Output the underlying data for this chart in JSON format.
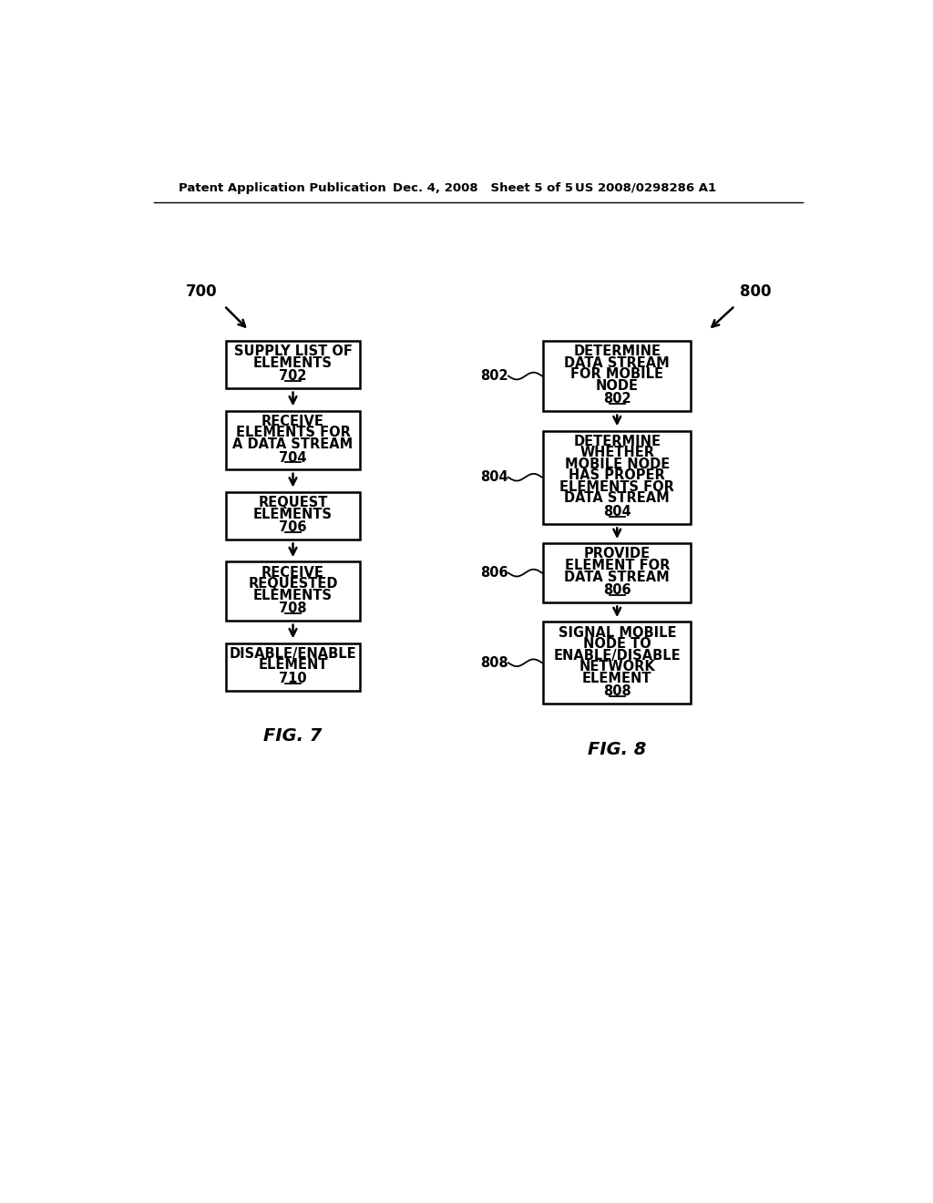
{
  "header_left": "Patent Application Publication",
  "header_mid": "Dec. 4, 2008   Sheet 5 of 5",
  "header_right": "US 2008/0298286 A1",
  "fig7_label": "FIG. 7",
  "fig8_label": "FIG. 8",
  "fig7_ref": "700",
  "fig8_ref": "800",
  "fig7_boxes": [
    {
      "lines": [
        "SUPPLY LIST OF",
        "ELEMENTS"
      ],
      "num": "702"
    },
    {
      "lines": [
        "RECEIVE",
        "ELEMENTS FOR",
        "A DATA STREAM"
      ],
      "num": "704"
    },
    {
      "lines": [
        "REQUEST",
        "ELEMENTS"
      ],
      "num": "706"
    },
    {
      "lines": [
        "RECEIVE",
        "REQUESTED",
        "ELEMENTS"
      ],
      "num": "708"
    },
    {
      "lines": [
        "DISABLE/ENABLE",
        "ELEMENT"
      ],
      "num": "710"
    }
  ],
  "fig8_boxes": [
    {
      "lines": [
        "DETERMINE",
        "DATA STREAM",
        "FOR MOBILE",
        "NODE"
      ],
      "num": "802",
      "label": "802"
    },
    {
      "lines": [
        "DETERMINE",
        "WHETHER",
        "MOBILE NODE",
        "HAS PROPER",
        "ELEMENTS FOR",
        "DATA STREAM"
      ],
      "num": "804",
      "label": "804"
    },
    {
      "lines": [
        "PROVIDE",
        "ELEMENT FOR",
        "DATA STREAM"
      ],
      "num": "806",
      "label": "806"
    },
    {
      "lines": [
        "SIGNAL MOBILE",
        "NODE TO",
        "ENABLE/DISABLE",
        "NETWORK",
        "ELEMENT"
      ],
      "num": "808",
      "label": "808"
    }
  ],
  "bg_color": "#ffffff",
  "box_edge_color": "#000000",
  "text_color": "#000000",
  "arrow_color": "#000000"
}
